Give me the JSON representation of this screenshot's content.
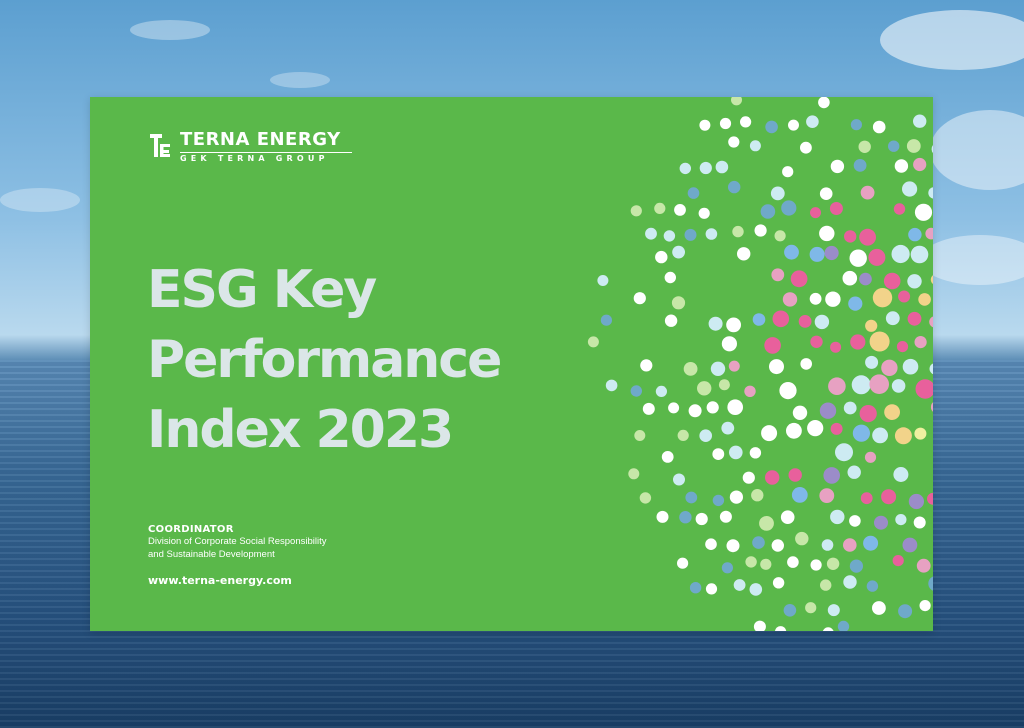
{
  "cover": {
    "brand": "TERNA ENERGY",
    "group": "GEK TERNA GROUP",
    "title_lines": [
      "ESG Key",
      "Performance",
      "Index 2023"
    ],
    "coordinator_label": "COORDINATOR",
    "coordinator_lines": [
      "Division of Corporate Social Responsibility",
      "and Sustainable Development"
    ],
    "website": "www.terna-energy.com"
  },
  "colors": {
    "cover_green": "#5ab84a",
    "title_text": "#dbe6e8",
    "dot_palette": [
      "#ffffff",
      "#cdebf2",
      "#d9f2e9",
      "#7fb8e8",
      "#e8609c",
      "#e7a1c2",
      "#f2d38a",
      "#eff0a0",
      "#9b8cc9",
      "#c7e7a8",
      "#6fa9c9"
    ]
  },
  "icons": [
    "terna-logo-mark-icon"
  ]
}
